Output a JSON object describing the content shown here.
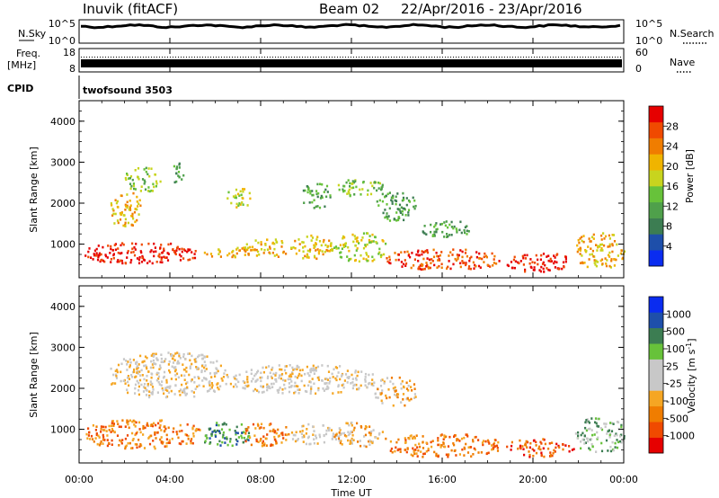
{
  "header": {
    "station": "Inuvik (fitACF)",
    "beam": "Beam 02",
    "dates": "22/Apr/2016 - 23/Apr/2016",
    "cpid_label": "CPID",
    "cpid_value": "twofsound 3503"
  },
  "top_panels": {
    "nsky": {
      "label": "N.Sky",
      "left_ticks": [
        "10^5",
        "10^0"
      ],
      "right_ticks": [
        "10^5",
        "10^0"
      ],
      "right_label": "N.Search"
    },
    "freq": {
      "label_lines": [
        "Freq.",
        "[MHz]"
      ],
      "left_ticks": [
        "18",
        "8"
      ],
      "right_ticks": [
        "60",
        "0"
      ],
      "right_label": "Nave"
    }
  },
  "x_axis": {
    "title": "Time UT",
    "ticks": [
      "00:00",
      "04:00",
      "08:00",
      "12:00",
      "16:00",
      "20:00",
      "00:00"
    ]
  },
  "colors": {
    "power": [
      "#0a2cf0",
      "#1e4faa",
      "#3c7d52",
      "#4fa04b",
      "#67c23a",
      "#c8d41e",
      "#f0b400",
      "#f07d00",
      "#f04a00",
      "#e60000"
    ],
    "velocity": [
      "#e60000",
      "#f04a00",
      "#f07d00",
      "#f5a623",
      "#c8c8c8",
      "#c8c8c8",
      "#67c23a",
      "#3c7d52",
      "#1e4faa",
      "#0a2cf0"
    ]
  },
  "chart_data": [
    {
      "type": "heatmap",
      "name": "power",
      "ylabel": "Slant Range [km]",
      "yticks": [
        1000,
        2000,
        3000,
        4000
      ],
      "ylim": [
        180,
        4500
      ],
      "xlim_hours": [
        0,
        24
      ],
      "colorbar": {
        "label": "Power [dB]",
        "ticks": [
          "4",
          "8",
          "12",
          "16",
          "20",
          "24",
          "28"
        ],
        "range": [
          0,
          32
        ]
      },
      "regions": [
        {
          "t": [
            0.2,
            5.3
          ],
          "r": [
            550,
            1050
          ],
          "level": 9
        },
        {
          "t": [
            5.3,
            7.5
          ],
          "r": [
            700,
            950
          ],
          "level": 6
        },
        {
          "t": [
            7.2,
            9.2
          ],
          "r": [
            700,
            1150
          ],
          "level": 6
        },
        {
          "t": [
            9.3,
            11.2
          ],
          "r": [
            650,
            1250
          ],
          "level": 6
        },
        {
          "t": [
            11.2,
            13.5
          ],
          "r": [
            600,
            1300
          ],
          "level": 5
        },
        {
          "t": [
            13.5,
            18.5
          ],
          "r": [
            400,
            900
          ],
          "level": 8
        },
        {
          "t": [
            18.8,
            21.8
          ],
          "r": [
            350,
            800
          ],
          "level": 9
        },
        {
          "t": [
            21.8,
            24.0
          ],
          "r": [
            450,
            1300
          ],
          "level": 6
        },
        {
          "t": [
            1.3,
            2.7
          ],
          "r": [
            1450,
            2300
          ],
          "level": 6
        },
        {
          "t": [
            2.0,
            3.6
          ],
          "r": [
            2300,
            2900
          ],
          "level": 4
        },
        {
          "t": [
            4.0,
            4.6
          ],
          "r": [
            2500,
            3000
          ],
          "level": 3
        },
        {
          "t": [
            6.5,
            7.5
          ],
          "r": [
            1900,
            2400
          ],
          "level": 5
        },
        {
          "t": [
            9.8,
            11.1
          ],
          "r": [
            1900,
            2500
          ],
          "level": 3
        },
        {
          "t": [
            11.3,
            13.4
          ],
          "r": [
            2200,
            2600
          ],
          "level": 4
        },
        {
          "t": [
            13.0,
            14.8
          ],
          "r": [
            1600,
            2300
          ],
          "level": 3
        },
        {
          "t": [
            15.0,
            17.2
          ],
          "r": [
            1200,
            1600
          ],
          "level": 3
        }
      ]
    },
    {
      "type": "heatmap",
      "name": "velocity",
      "ylabel": "Slant Range [km]",
      "yticks": [
        1000,
        2000,
        3000,
        4000
      ],
      "ylim": [
        180,
        4500
      ],
      "xlim_hours": [
        0,
        24
      ],
      "colorbar": {
        "label": "Velocity [m s^-1]",
        "ticks": [
          "1000",
          "500",
          "100",
          "25",
          "-25",
          "-100",
          "-500",
          "-1000"
        ],
        "range": [
          -1000,
          1000
        ]
      },
      "regions": [
        {
          "t": [
            0.2,
            5.3
          ],
          "r": [
            550,
            1250
          ],
          "level": 2
        },
        {
          "t": [
            5.3,
            7.5
          ],
          "r": [
            600,
            1200
          ],
          "level": 7
        },
        {
          "t": [
            7.2,
            9.2
          ],
          "r": [
            600,
            1200
          ],
          "level": 2
        },
        {
          "t": [
            9.3,
            11.2
          ],
          "r": [
            650,
            1150
          ],
          "level": 4
        },
        {
          "t": [
            11.2,
            13.5
          ],
          "r": [
            600,
            1200
          ],
          "level": 3
        },
        {
          "t": [
            13.5,
            18.5
          ],
          "r": [
            350,
            900
          ],
          "level": 2
        },
        {
          "t": [
            18.8,
            21.8
          ],
          "r": [
            350,
            800
          ],
          "level": 1
        },
        {
          "t": [
            21.8,
            24.0
          ],
          "r": [
            450,
            1300
          ],
          "level": 6
        },
        {
          "t": [
            1.3,
            6.5
          ],
          "r": [
            1800,
            2900
          ],
          "level": 4
        },
        {
          "t": [
            6.5,
            13.0
          ],
          "r": [
            1900,
            2600
          ],
          "level": 4
        },
        {
          "t": [
            13.0,
            14.8
          ],
          "r": [
            1600,
            2300
          ],
          "level": 3
        }
      ]
    }
  ]
}
